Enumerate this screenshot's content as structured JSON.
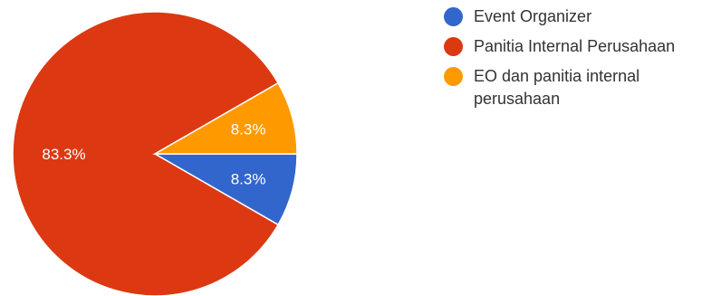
{
  "chart_data": {
    "type": "pie",
    "slices": [
      {
        "name": "Event Organizer",
        "value": 8.3,
        "label": "8.3%",
        "color": "#3366cc"
      },
      {
        "name": "Panitia Internal Perusahaan",
        "value": 83.3,
        "label": "83.3%",
        "color": "#dc3912"
      },
      {
        "name": "EO dan panitia internal perusahaan",
        "value": 8.3,
        "label": "8.3%",
        "color": "#ff9900"
      }
    ],
    "start_angle_deg": 90,
    "direction": "clockwise",
    "legend": "right"
  }
}
